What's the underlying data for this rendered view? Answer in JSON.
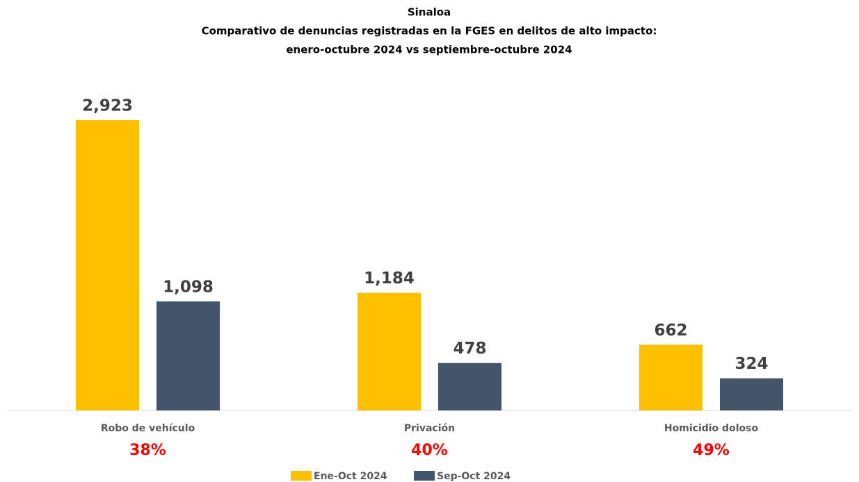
{
  "chart_data": {
    "type": "bar",
    "title": "Sinaloa",
    "subtitle": [
      "Comparativo de denuncias registradas en la FGES en delitos de alto impacto:",
      "enero-octubre 2024 vs septiembre-octubre 2024"
    ],
    "categories": [
      "Robo de vehículo",
      "Privación",
      "Homicidio doloso"
    ],
    "annotations": [
      "38%",
      "40%",
      "49%"
    ],
    "series": [
      {
        "name": "Ene-Oct 2024",
        "color": "#FFC000",
        "values": [
          2923,
          1184,
          662
        ],
        "value_labels": [
          "2,923",
          "1,184",
          "662"
        ]
      },
      {
        "name": "Sep-Oct 2024",
        "color": "#44546A",
        "values": [
          1098,
          478,
          324
        ],
        "value_labels": [
          "1,098",
          "478",
          "324"
        ]
      }
    ],
    "grid": false
  }
}
